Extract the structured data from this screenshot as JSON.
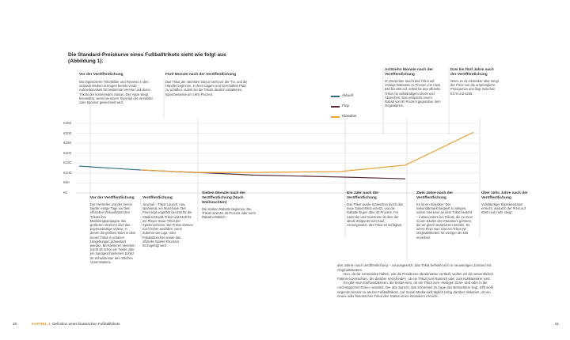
{
  "title": "Die Standard-Preiskurve eines Fußballtrikots sieht wie folgt aus (Abbildung 1):",
  "y_axis_labels": [
    "€350",
    "€300",
    "€250",
    "€200",
    "€150",
    "€100",
    "€50",
    "€0"
  ],
  "legend": [
    {
      "label": "Aktuell",
      "color": "#2d6b8a"
    },
    {
      "label": "Flop",
      "color": "#5a2a3a"
    },
    {
      "label": "Klassiker",
      "color": "#e8a43a"
    }
  ],
  "top_annotations": [
    {
      "heading": "Vor der Veröffentlichung",
      "text": "Durchgesickerte Trikotbilder und Reviews in den sozialen Medien erzeugen bereits vorab Aufmerksamkeit für bestimmte Vereine und deren Trikots der kommenden Saison. Der Hype steigt besonders, wenn bei einem Top-Klub der Hersteller oder Sponsor gewechselt wird."
    },
    {
      "heading": "Fünf Monate nach der Veröffentlichung",
      "text": "Das Trikot der nächsten Saison steht vor der Tür, und die Händler beginnen, in ihren Lägern und Geschäften Platz zu schaffen, indem sie die Trikots deutlich rabattieren, typischerweise um zehn Prozent."
    },
    {
      "heading": "Achtzehn Monate nach der Veröffentlichung",
      "text": "Im Dezember taucht das Trikot auf Vintage-Websites zu Preisen von etwa €40 bis €60 auf, selbst für das offizielle Trikot mit vollständigem Druck und Abzeichen. Das entspricht einem Rabatt von 50 Prozent gegenüber dem Originalpreis."
    },
    {
      "heading": "Drei bis fünf Jahre nach der Veröffentlichung",
      "text": "Wenn es ein Klassiker über-steigt der Preis nun die ursprüngliche Preisgrenze und liegt zwischen €170 und €230."
    }
  ],
  "bottom_annotations": [
    {
      "heading": "Vor der Veröffentlichung",
      "text": "Der Hersteller und der Verein starten einige Tage vor dem offiziellen Verkaufsstart des Trikots ihre Marketingkampagne. Bei größeren Vereinen sind das popmusikartige Videos, in denen die größten Stars in dem neuen Trikot in urbanen Umgebungen präsentiert werden. Bei kleineren Vereinen reicht oft schon ein Tweet oder ein handgeschriebenes Schild im Schaufenster des örtlichen Vereinsladens."
    },
    {
      "heading": "Veröffentlichung",
      "text": "Juni/Juli – Trikot-Launch: neu, spannend, ein Must-have. Der Preis liegt ungefähr bei €35 für die Stadion-Replik-Trikot und €115 für ein Player-Issue-Trikot der Spielerversione. Die Preise können noch höher ausfallen, wenn Zubehör wie Liga- oder Pokalabzeichen sowie das offizielle Spieler-Druckset hinzugefügt wird."
    },
    {
      "heading": "Sieben Monate nach der Veröffentlichung (Nach Weihnachten)",
      "text": "Die starken Rabatte beginnen. Die Trikots sind mit 25 Prozent oder mehr Rabatt erhältlich."
    },
    {
      "heading": "Ein Jahr nach der Veröffentlichung",
      "text": "Das Trikot wurde inzwischen durch das neue Saisontrikot ersetzt, und die Rabatte liegen über 40 Prozent. Für Sammler und Investoren ist dies der ideale Zeitpunkt zum Kauf, vorausgesetzt, das Trikot ist verfügbar."
    },
    {
      "heading": "Zwei Jahre nach der Veröffentlichung",
      "text": "Es ist ein Klassiker: Der Sekundärmarkt beginnt zu steigen, sofern Interesse an dem Trikot besteht – insbesondere bei Trikots, die zu einer neuen Säulen des Klassikers gehören, die wir gleich analysieren werden. Es ist ein Flop: Nun sind ein Trikot mit Originaletiketten für weniger als €25 erwerben."
    },
    {
      "heading": "Über zehn Jahre nach der Veröffentlichung",
      "text": "Vollständiger Klassikerstatus erreicht, wodurch der Preis auf €280 und mehr steigt."
    }
  ],
  "paragraph": [
    "drei Jahren nach Veröffentlichung – vorausgesetzt, das Trikot befindet sich in neuwertigen Zustand mit Originaletiketten.",
    "Nun, da wir verstanden haben, wie die Preiskurve idealerweise verläuft, wollen wir die wesentlichen Faktoren betrachten, die darüber entscheiden, ob ein Trikot zum Ramsch oder zum Kultklassiker wird.",
    "Es gibt neun Einflussfaktoren, die bestimmen, ob ein Trikot zum »heiligen Gral« wird oder in die »Schnäppchen-Ecke« wandert. Der alte Spruch, das Schönheit im Auge des Betrachters liegt, trifft wohl nirgends besser zu als bei Fußballtrikots. Auf Social Media wird täglich hitzig darüber diskutiert, ob ein neues oder historisches Trikot den Status eines Klassikers erreicht."
  ],
  "footer": {
    "page_left": "20",
    "chapter": "KAPITEL 1:",
    "chapter_title": "Definition eines klassischen Fußballtrikots",
    "page_right": "21"
  },
  "chart_data": {
    "type": "line",
    "ylim": [
      0,
      350
    ],
    "x": [
      0,
      1,
      2,
      3,
      4,
      5,
      6,
      7
    ],
    "series": [
      {
        "name": "Aktuell",
        "color": "#2d6b8a",
        "points": [
          [
            0,
            135
          ],
          [
            1,
            115
          ]
        ]
      },
      {
        "name": "Flop",
        "color": "#5a2a3a",
        "points": [
          [
            1,
            115
          ],
          [
            2,
            103
          ],
          [
            3,
            90
          ],
          [
            4,
            80
          ],
          [
            5,
            71
          ]
        ]
      },
      {
        "name": "Klassiker",
        "color": "#e8a43a",
        "points": [
          [
            1,
            115
          ],
          [
            2,
            103
          ],
          [
            3,
            103
          ],
          [
            4,
            108
          ],
          [
            5,
            140
          ],
          [
            6,
            305
          ]
        ]
      }
    ]
  }
}
